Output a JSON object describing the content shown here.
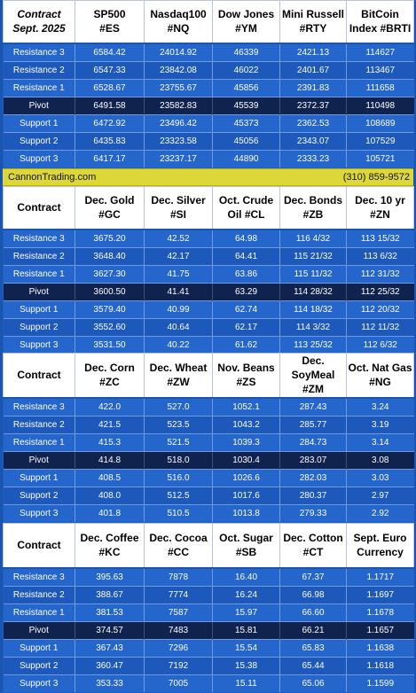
{
  "labels": {
    "resistance3": "Resistance 3",
    "resistance2": "Resistance 2",
    "resistance1": "Resistance 1",
    "pivot": "Pivot",
    "support1": "Support 1",
    "support2": "Support 2",
    "support3": "Support 3",
    "contract": "Contract"
  },
  "banner": {
    "site": "CannonTrading.com",
    "phone": "(310) 859-9572"
  },
  "block1": {
    "corner": [
      "Contract",
      "Sept. 2025"
    ],
    "headers": [
      [
        "SP500",
        "#ES"
      ],
      [
        "Nasdaq100",
        "#NQ"
      ],
      [
        "Dow Jones",
        "#YM"
      ],
      [
        "Mini Russell",
        "#RTY"
      ],
      [
        "BitCoin",
        "Index #BRTI"
      ]
    ],
    "rows": [
      [
        "6584.42",
        "24014.92",
        "46339",
        "2421.13",
        "114627"
      ],
      [
        "6547.33",
        "23842.08",
        "46022",
        "2401.67",
        "113467"
      ],
      [
        "6528.67",
        "23755.67",
        "45856",
        "2391.83",
        "111658"
      ],
      [
        "6491.58",
        "23582.83",
        "45539",
        "2372.37",
        "110498"
      ],
      [
        "6472.92",
        "23496.42",
        "45373",
        "2362.53",
        "108689"
      ],
      [
        "6435.83",
        "23323.58",
        "45056",
        "2343.07",
        "107529"
      ],
      [
        "6417.17",
        "23237.17",
        "44890",
        "2333.23",
        "105721"
      ]
    ]
  },
  "block2": {
    "headers": [
      [
        "Dec. Gold",
        "#GC"
      ],
      [
        "Dec. Silver",
        "#SI"
      ],
      [
        "Oct. Crude",
        "Oil #CL"
      ],
      [
        "Dec. Bonds",
        "#ZB"
      ],
      [
        "Dec. 10 yr",
        "#ZN"
      ]
    ],
    "rows": [
      [
        "3675.20",
        "42.52",
        "64.98",
        "116 4/32",
        "113 15/32"
      ],
      [
        "3648.40",
        "42.17",
        "64.41",
        "115 21/32",
        "113 6/32"
      ],
      [
        "3627.30",
        "41.75",
        "63.86",
        "115 11/32",
        "112 31/32"
      ],
      [
        "3600.50",
        "41.41",
        "63.29",
        "114 28/32",
        "112 25/32"
      ],
      [
        "3579.40",
        "40.99",
        "62.74",
        "114 18/32",
        "112 20/32"
      ],
      [
        "3552.60",
        "40.64",
        "62.17",
        "114 3/32",
        "112 11/32"
      ],
      [
        "3531.50",
        "40.22",
        "61.62",
        "113 25/32",
        "112 6/32"
      ]
    ]
  },
  "block3": {
    "headers": [
      [
        "Dec. Corn",
        "#ZC"
      ],
      [
        "Dec. Wheat",
        "#ZW"
      ],
      [
        "Nov. Beans",
        "#ZS"
      ],
      [
        "Dec.",
        "SoyMeal",
        "#ZM"
      ],
      [
        "Oct. Nat Gas",
        "#NG"
      ]
    ],
    "rows": [
      [
        "422.0",
        "527.0",
        "1052.1",
        "287.43",
        "3.24"
      ],
      [
        "421.5",
        "523.5",
        "1043.2",
        "285.77",
        "3.19"
      ],
      [
        "415.3",
        "521.5",
        "1039.3",
        "284.73",
        "3.14"
      ],
      [
        "414.8",
        "518.0",
        "1030.4",
        "283.07",
        "3.08"
      ],
      [
        "408.5",
        "516.0",
        "1026.6",
        "282.03",
        "3.03"
      ],
      [
        "408.0",
        "512.5",
        "1017.6",
        "280.37",
        "2.97"
      ],
      [
        "401.8",
        "510.5",
        "1013.8",
        "279.33",
        "2.92"
      ]
    ]
  },
  "block4": {
    "headers": [
      [
        "Dec. Coffee",
        "#KC"
      ],
      [
        "Dec. Cocoa",
        "#CC"
      ],
      [
        "Oct. Sugar",
        "#SB"
      ],
      [
        "Dec. Cotton",
        "#CT"
      ],
      [
        "Sept. Euro",
        "Currency"
      ]
    ],
    "rows": [
      [
        "395.63",
        "7878",
        "16.40",
        "67.37",
        "1.1717"
      ],
      [
        "388.67",
        "7774",
        "16.24",
        "66.98",
        "1.1697"
      ],
      [
        "381.53",
        "7587",
        "15.97",
        "66.60",
        "1.1678"
      ],
      [
        "374.57",
        "7483",
        "15.81",
        "66.21",
        "1.1657"
      ],
      [
        "367.43",
        "7296",
        "15.54",
        "65.83",
        "1.1638"
      ],
      [
        "360.47",
        "7192",
        "15.38",
        "65.44",
        "1.1618"
      ],
      [
        "353.33",
        "7005",
        "15.11",
        "65.06",
        "1.1599"
      ]
    ]
  }
}
